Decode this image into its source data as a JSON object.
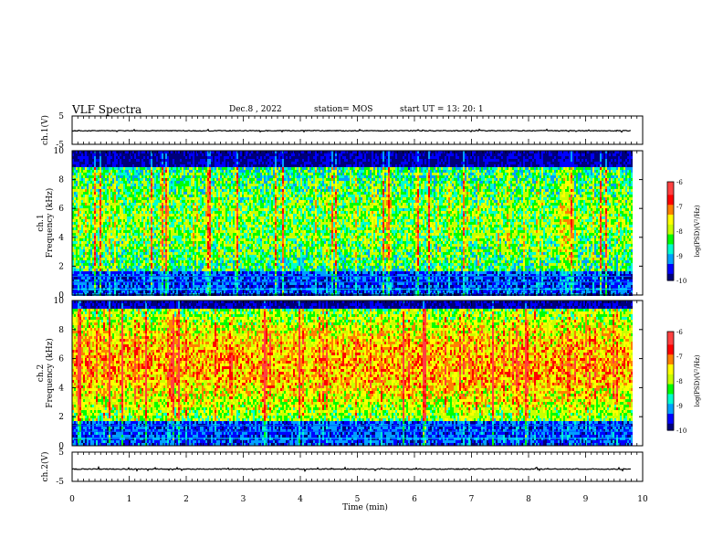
{
  "header": {
    "title": "VLF Spectra",
    "date": "Dec.8 , 2022",
    "station": "station= MOS",
    "start_ut": "start UT = 13: 20: 1"
  },
  "colors": {
    "spectrogram_scale": [
      "#00007a",
      "#0000ff",
      "#00a0ff",
      "#00ffd0",
      "#00ff00",
      "#c8ff00",
      "#ffff00",
      "#ff8000",
      "#ff0000",
      "#ff4040",
      "#ffffff"
    ],
    "background": "#000000",
    "waveform": "#000000"
  },
  "chart_data": [
    {
      "type": "line",
      "name": "waveform-ch1",
      "ylabel": "ch.1(V)",
      "ylim": [
        -5,
        5
      ],
      "y_ticks": [
        "5",
        "-5"
      ],
      "xlim": [
        0,
        10
      ],
      "x_unit": "min",
      "description_values": {
        "level_v": -0.2,
        "noise_amplitude_v": 0.3
      }
    },
    {
      "type": "heatmap",
      "name": "spectrogram-ch1",
      "ylabel": "ch.1\nFrequency (kHz)",
      "ylabel_line1": "ch.1",
      "ylabel_line2": "Frequency (kHz)",
      "ylim": [
        0,
        10
      ],
      "y_ticks": [
        "0",
        "2",
        "4",
        "6",
        "8",
        "10"
      ],
      "xlim": [
        0,
        9.8
      ],
      "colorbar": {
        "label": "log(PSD)(V²/Hz)",
        "range": [
          -10,
          -6
        ],
        "ticks": [
          "-6",
          "-7",
          "-8",
          "-9",
          "-10"
        ]
      },
      "bands": [
        {
          "f_low_khz": 0,
          "f_high_khz": 1.7,
          "level": "low",
          "note": "dark band with narrowband lines"
        },
        {
          "f_low_khz": 1.7,
          "f_high_khz": 9.0,
          "level": "mid-high",
          "note": "broadband sferics"
        },
        {
          "f_low_khz": 9.0,
          "f_high_khz": 10,
          "level": "low"
        }
      ],
      "narrowband_lines_khz": [
        0.4,
        0.9,
        1.3
      ]
    },
    {
      "type": "heatmap",
      "name": "spectrogram-ch2",
      "ylabel_line1": "ch.2",
      "ylabel_line2": "Frequency (kHz)",
      "ylim": [
        0,
        10
      ],
      "y_ticks": [
        "0",
        "2",
        "4",
        "6",
        "8",
        "10"
      ],
      "xlim": [
        0,
        9.8
      ],
      "colorbar": {
        "label": "log(PSD)(V²/Hz)",
        "range": [
          -10,
          -6
        ],
        "ticks": [
          "-6",
          "-7",
          "-8",
          "-9",
          "-10"
        ]
      },
      "bands": [
        {
          "f_low_khz": 0,
          "f_high_khz": 1.7,
          "level": "low"
        },
        {
          "f_low_khz": 1.7,
          "f_high_khz": 9.5,
          "level": "high",
          "note": "strong sferics, reds 4-8 kHz"
        },
        {
          "f_low_khz": 9.5,
          "f_high_khz": 10,
          "level": "low"
        }
      ],
      "narrowband_lines_khz": [
        0.5,
        1.0,
        1.4
      ]
    },
    {
      "type": "line",
      "name": "waveform-ch2",
      "ylabel": "ch.2(V)",
      "ylim": [
        -5,
        5
      ],
      "y_ticks": [
        "5",
        "-5"
      ],
      "xlim": [
        0,
        10
      ],
      "description_values": {
        "level_v": -0.8,
        "noise_amplitude_v": 0.3
      }
    }
  ],
  "x_axis": {
    "label": "Time (min)",
    "ticks": [
      "0",
      "1",
      "2",
      "3",
      "4",
      "5",
      "6",
      "7",
      "8",
      "9",
      "10"
    ]
  }
}
